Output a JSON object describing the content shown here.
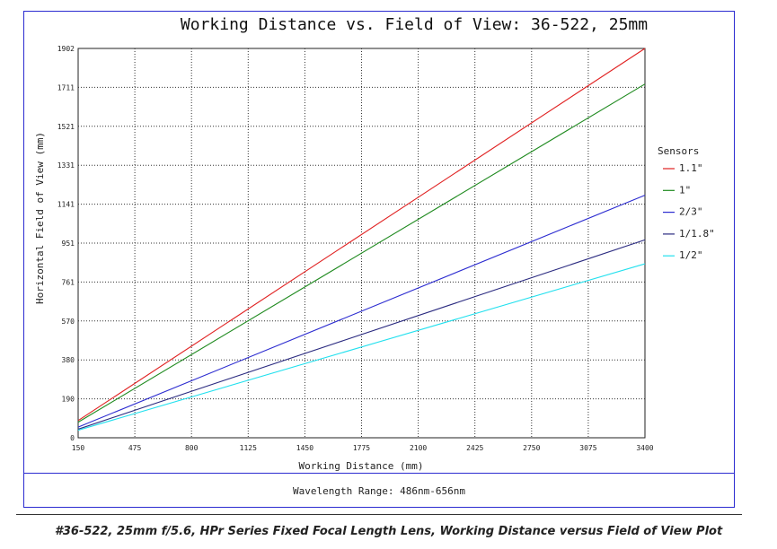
{
  "chart_data": {
    "type": "line",
    "title": "Working Distance vs. Field of View: 36-522, 25mm",
    "xlabel": "Working Distance (mm)",
    "ylabel": "Horizontal Field of View (mm)",
    "xlim": [
      150,
      3400
    ],
    "ylim": [
      0,
      1902
    ],
    "xticks": [
      "150",
      "475",
      "800",
      "1125",
      "1450",
      "1775",
      "2100",
      "2425",
      "2750",
      "3075",
      "3400"
    ],
    "yticks": [
      "0",
      "190",
      "380",
      "570",
      "761",
      "951",
      "1141",
      "1331",
      "1521",
      "1711",
      "1902"
    ],
    "grid": true,
    "legend_title": "Sensors",
    "legend_position": "right",
    "x": [
      150,
      3400
    ],
    "series": [
      {
        "name": "1.1\"",
        "color": "#e02020",
        "values": [
          84,
          1902
        ]
      },
      {
        "name": "1\"",
        "color": "#1f8a1f",
        "values": [
          76,
          1728
        ]
      },
      {
        "name": "2/3\"",
        "color": "#2c2cd0",
        "values": [
          52,
          1185
        ]
      },
      {
        "name": "1/1.8\"",
        "color": "#2a2a80",
        "values": [
          42,
          967
        ]
      },
      {
        "name": "1/2\"",
        "color": "#22e0ee",
        "values": [
          37,
          850
        ]
      }
    ]
  },
  "footer": {
    "wavelength": "Wavelength Range: 486nm-656nm"
  },
  "caption": "#36-522, 25mm f/5.6, HPr Series Fixed Focal Length Lens, Working Distance versus Field of View Plot"
}
